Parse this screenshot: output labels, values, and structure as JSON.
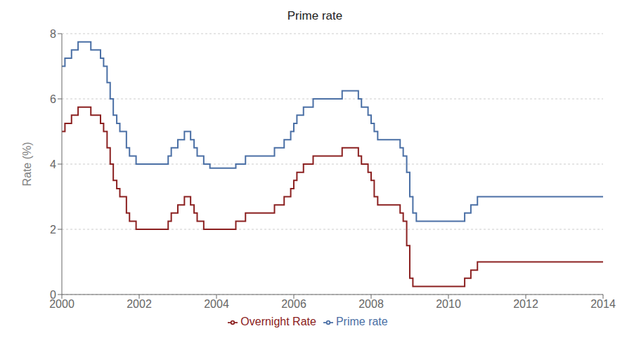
{
  "chart_data": {
    "type": "step",
    "title": "Prime rate",
    "y_label": "Rate (%)",
    "xlim": [
      2000,
      2014
    ],
    "ylim": [
      0,
      8
    ],
    "xticks": [
      2000,
      2002,
      2004,
      2006,
      2008,
      2010,
      2012,
      2014
    ],
    "yticks": [
      0,
      2,
      4,
      6,
      8
    ],
    "grid": "y",
    "legend": "bottom",
    "series": [
      {
        "name": "Prime rate",
        "color": "#4a6fa5",
        "x": [
          2000.0,
          2000.08,
          2000.25,
          2000.42,
          2000.58,
          2000.75,
          2001.0,
          2001.08,
          2001.17,
          2001.25,
          2001.33,
          2001.42,
          2001.5,
          2001.67,
          2001.75,
          2001.92,
          2002.0,
          2002.67,
          2002.75,
          2002.83,
          2003.0,
          2003.17,
          2003.33,
          2003.42,
          2003.5,
          2003.67,
          2003.83,
          2004.0,
          2004.5,
          2004.75,
          2005.0,
          2005.5,
          2005.75,
          2005.92,
          2006.0,
          2006.08,
          2006.25,
          2006.5,
          2007.0,
          2007.25,
          2007.5,
          2007.67,
          2007.75,
          2007.92,
          2008.0,
          2008.08,
          2008.17,
          2008.25,
          2008.75,
          2008.83,
          2008.92,
          2009.0,
          2009.08,
          2009.17,
          2009.33,
          2010.0,
          2010.42,
          2010.58,
          2010.75,
          2011.0,
          2014.0
        ],
        "values": [
          7.0,
          7.25,
          7.5,
          7.75,
          7.75,
          7.5,
          7.25,
          7.0,
          6.5,
          6.0,
          5.5,
          5.25,
          5.0,
          4.5,
          4.25,
          4.0,
          4.0,
          4.0,
          4.25,
          4.5,
          4.75,
          5.0,
          4.75,
          4.5,
          4.25,
          4.0,
          3.875,
          3.875,
          4.0,
          4.25,
          4.25,
          4.5,
          4.75,
          5.0,
          5.25,
          5.5,
          5.75,
          6.0,
          6.0,
          6.25,
          6.25,
          6.0,
          5.75,
          5.5,
          5.25,
          5.0,
          4.75,
          4.75,
          4.5,
          4.25,
          3.75,
          3.0,
          2.5,
          2.25,
          2.25,
          2.25,
          2.5,
          2.75,
          3.0,
          3.0,
          3.0
        ]
      },
      {
        "name": "Overnight Rate",
        "color": "#8b2020",
        "x": [
          2000.0,
          2000.08,
          2000.25,
          2000.42,
          2000.58,
          2000.75,
          2001.0,
          2001.08,
          2001.17,
          2001.25,
          2001.33,
          2001.42,
          2001.5,
          2001.67,
          2001.75,
          2001.92,
          2002.0,
          2002.67,
          2002.75,
          2002.83,
          2003.0,
          2003.17,
          2003.33,
          2003.42,
          2003.5,
          2003.67,
          2003.83,
          2004.0,
          2004.5,
          2004.75,
          2005.0,
          2005.5,
          2005.75,
          2005.92,
          2006.0,
          2006.08,
          2006.25,
          2006.5,
          2007.0,
          2007.25,
          2007.5,
          2007.67,
          2007.75,
          2007.92,
          2008.0,
          2008.08,
          2008.17,
          2008.25,
          2008.75,
          2008.83,
          2008.92,
          2009.0,
          2009.08,
          2009.33,
          2010.0,
          2010.42,
          2010.58,
          2010.75,
          2011.0,
          2014.0
        ],
        "values": [
          5.0,
          5.25,
          5.5,
          5.75,
          5.75,
          5.5,
          5.25,
          5.0,
          4.5,
          4.0,
          3.5,
          3.25,
          3.0,
          2.5,
          2.25,
          2.0,
          2.0,
          2.0,
          2.25,
          2.5,
          2.75,
          3.0,
          2.75,
          2.5,
          2.25,
          2.0,
          2.0,
          2.0,
          2.25,
          2.5,
          2.5,
          2.75,
          3.0,
          3.25,
          3.5,
          3.75,
          4.0,
          4.25,
          4.25,
          4.5,
          4.5,
          4.25,
          4.0,
          3.75,
          3.5,
          3.0,
          2.75,
          2.75,
          2.5,
          2.25,
          1.5,
          0.5,
          0.25,
          0.25,
          0.25,
          0.5,
          0.75,
          1.0,
          1.0,
          1.0
        ]
      }
    ]
  }
}
